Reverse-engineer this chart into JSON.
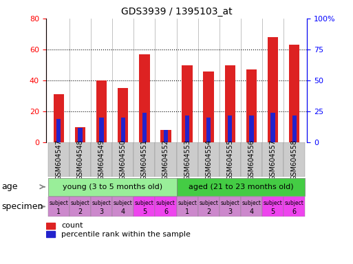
{
  "title": "GDS3939 / 1395103_at",
  "samples": [
    "GSM604547",
    "GSM604548",
    "GSM604549",
    "GSM604550",
    "GSM604551",
    "GSM604552",
    "GSM604553",
    "GSM604554",
    "GSM604555",
    "GSM604556",
    "GSM604557",
    "GSM604558"
  ],
  "count_values": [
    31,
    10,
    40,
    35,
    57,
    8,
    50,
    46,
    50,
    47,
    68,
    63
  ],
  "percentile_values": [
    19,
    12,
    20,
    20,
    24,
    10,
    22,
    20,
    22,
    22,
    24,
    22
  ],
  "bar_color": "#dd2222",
  "pct_color": "#2222cc",
  "ylim_left": [
    0,
    80
  ],
  "ylim_right": [
    0,
    100
  ],
  "yticks_left": [
    0,
    20,
    40,
    60,
    80
  ],
  "ytick_labels_right": [
    "0",
    "25",
    "50",
    "75",
    "100%"
  ],
  "dotted_lines": [
    20,
    40,
    60
  ],
  "bar_width": 0.5,
  "young_label": "young (3 to 5 months old)",
  "aged_label": "aged (21 to 23 months old)",
  "young_color": "#99ee99",
  "aged_color": "#44cc44",
  "spec_colors": [
    "#cc88cc",
    "#cc88cc",
    "#cc88cc",
    "#cc88cc",
    "#ee44ee",
    "#ee44ee",
    "#cc88cc",
    "#cc88cc",
    "#cc88cc",
    "#cc88cc",
    "#ee44ee",
    "#ee44ee"
  ],
  "spec_numbers": [
    "1",
    "2",
    "3",
    "4",
    "5",
    "6",
    "1",
    "2",
    "3",
    "4",
    "5",
    "6"
  ],
  "age_label": "age",
  "specimen_label": "specimen",
  "legend_count": "count",
  "legend_pct": "percentile rank within the sample",
  "xtick_bg": "#cccccc"
}
